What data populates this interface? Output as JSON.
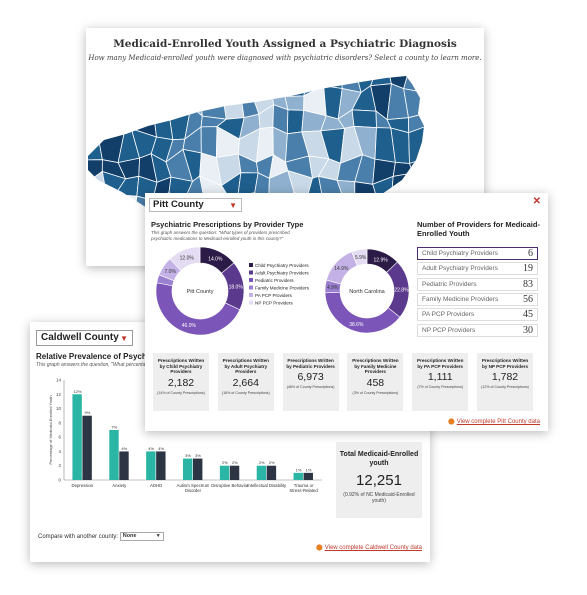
{
  "map": {
    "title": "Medicaid-Enrolled Youth Assigned a Psychiatric Diagnosis",
    "subtitle": "How many Medicaid-enrolled youth were diagnosed with psychiatric disorders? Select a county to learn more.",
    "palette": [
      "#123e6a",
      "#1f5f8e",
      "#4a7fac",
      "#8fb1cf",
      "#c9d9e8",
      "#e9eff5"
    ]
  },
  "pitt": {
    "county_select": "Pitt County",
    "close_icon": "close-icon",
    "rx_title": "Psychiatric Prescriptions by Provider Type",
    "rx_subtitle": "This graph answers the question: \"What types of providers prescribed psychiatric medications to Medicaid-enrolled youth in this county?\"",
    "donut_left_label": "Pitt County",
    "donut_right_label": "North Carolina",
    "donut_left_slices": [
      {
        "label": "14.0%",
        "value": 14.0,
        "color": "#2c1a47"
      },
      {
        "label": "18.0%",
        "value": 18.0,
        "color": "#5b3a8e"
      },
      {
        "label": "46.0%",
        "value": 46.0,
        "color": "#7c55b8"
      },
      {
        "label": "",
        "value": 3.0,
        "color": "#9b7fd0"
      },
      {
        "label": "7.0%",
        "value": 7.0,
        "color": "#c4b2e6"
      },
      {
        "label": "12.0%",
        "value": 12.0,
        "color": "#e3dcf2"
      }
    ],
    "donut_right_slices": [
      {
        "label": "12.9%",
        "value": 12.9,
        "color": "#2c1a47"
      },
      {
        "label": "22.8%",
        "value": 22.8,
        "color": "#5b3a8e"
      },
      {
        "label": "38.6%",
        "value": 38.6,
        "color": "#7c55b8"
      },
      {
        "label": "4.9%",
        "value": 4.9,
        "color": "#9b7fd0"
      },
      {
        "label": "14.9%",
        "value": 14.9,
        "color": "#c4b2e6"
      },
      {
        "label": "5.9%",
        "value": 5.9,
        "color": "#e3dcf2"
      }
    ],
    "legend": [
      {
        "label": "Child Psychiatry Providers",
        "color": "#2c1a47"
      },
      {
        "label": "Adult Psychiatry Providers",
        "color": "#5b3a8e"
      },
      {
        "label": "Pediatric Providers",
        "color": "#7c55b8"
      },
      {
        "label": "Family Medicine Providers",
        "color": "#9b7fd0"
      },
      {
        "label": "PA PCP Providers",
        "color": "#c4b2e6"
      },
      {
        "label": "NP PCP Providers",
        "color": "#e3dcf2"
      }
    ],
    "num_providers_title": "Number of Providers for Medicaid-Enrolled Youth",
    "providers": [
      {
        "label": "Child Psychiatry Providers",
        "value": "6"
      },
      {
        "label": "Adult Psychiatry Providers",
        "value": "19"
      },
      {
        "label": "Pediatric Providers",
        "value": "83"
      },
      {
        "label": "Family Medicine Providers",
        "value": "56"
      },
      {
        "label": "PA PCP Providers",
        "value": "45"
      },
      {
        "label": "NP PCP Providers",
        "value": "30"
      }
    ],
    "stats": [
      {
        "label": "Prescriptions Written by Child Psychiatry Providers",
        "value": "2,182",
        "pct": "(14% of County Prescriptions)"
      },
      {
        "label": "Prescriptions Written by Adult Psychiatry Providers",
        "value": "2,664",
        "pct": "(18% of County Prescriptions)"
      },
      {
        "label": "Prescriptions Written by Pediatric Providers",
        "value": "6,973",
        "pct": "(46% of County Prescriptions)"
      },
      {
        "label": "Prescriptions Written by Family Medicine Providers",
        "value": "458",
        "pct": "(3% of County Prescriptions)"
      },
      {
        "label": "Prescriptions Written by PA PCP Providers",
        "value": "1,111",
        "pct": "(7% of County Prescriptions)"
      },
      {
        "label": "Prescriptions Written by NP PCP Providers",
        "value": "1,782",
        "pct": "(12% of County Prescriptions)"
      }
    ],
    "view_link": "View complete Pitt County data"
  },
  "caldwell": {
    "county_select": "Caldwell County",
    "rel_title": "Relative Prevalence of Psychiatric",
    "rel_subtitle": "This graph answers the question, \"What percentage of M",
    "total_label": "Total Medicaid-Enrolled youth",
    "total_value": "12,251",
    "total_pct": "(0.92% of NC Medicaid-Enrolled youth)",
    "compare_label": "Compare with another county:",
    "compare_value": "None",
    "view_link": "View complete Caldwell County data",
    "teal": "#2bb5a5",
    "navy": "#2d3545"
  },
  "chart_data": {
    "type": "bar",
    "title": "Relative Prevalence of Psychiatric",
    "ylabel": "Percentage of Medicaid-Enrolled Youth",
    "xlabel": "",
    "ylim": [
      0,
      14
    ],
    "yticks": [
      0,
      2,
      4,
      6,
      8,
      10,
      12,
      14
    ],
    "categories": [
      "Depression",
      "Anxiety",
      "ADHD",
      "Autism Spectrum Disorder",
      "Disruptive Behavior",
      "Intellectual Disability",
      "Trauma or Stress-Related"
    ],
    "series": [
      {
        "values": [
          12,
          7,
          4,
          3,
          2,
          2,
          1
        ],
        "labels": [
          "12%",
          "7%",
          "4%",
          "3%",
          "2%",
          "2%",
          "1%"
        ]
      },
      {
        "values": [
          9,
          4,
          4,
          3,
          2,
          2,
          1
        ],
        "labels": [
          "9%",
          "4%",
          "4%",
          "3%",
          "2%",
          "2%",
          "1%"
        ]
      }
    ]
  }
}
